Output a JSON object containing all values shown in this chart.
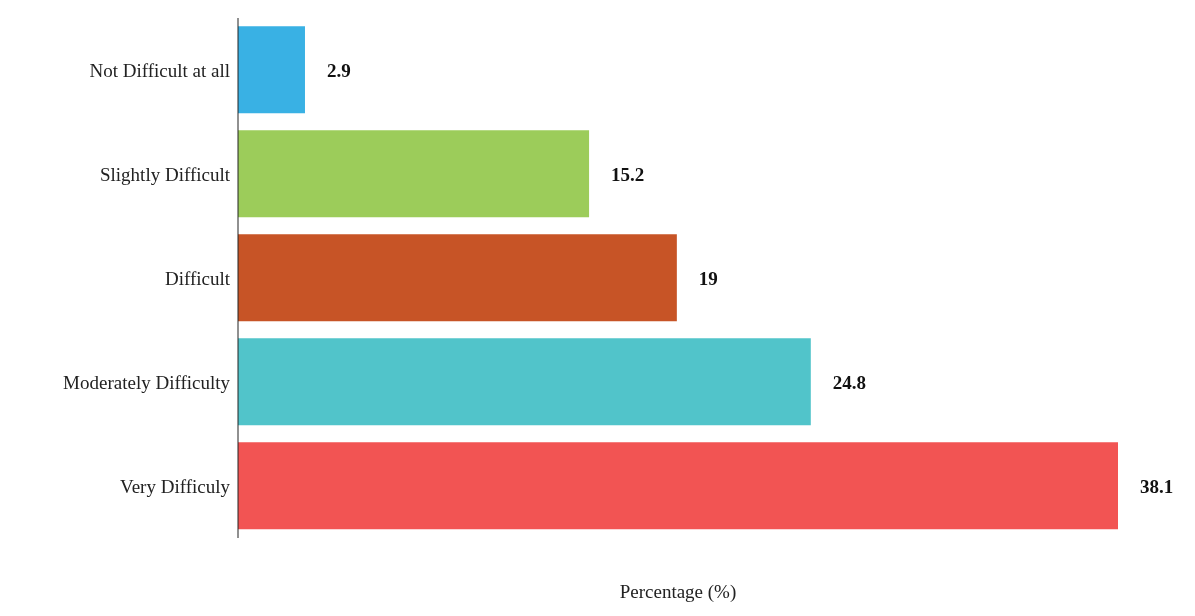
{
  "chart_data": {
    "type": "bar",
    "orientation": "horizontal",
    "xlabel": "Percentage (%)",
    "categories": [
      "Not Difficult at all",
      "Slightly Difficult",
      "Difficult",
      "Moderately Difficulty",
      "Very Difficuly"
    ],
    "values": [
      2.9,
      15.2,
      19,
      24.8,
      38.1
    ],
    "colors": [
      "#39b1e4",
      "#9ccc5a",
      "#c75426",
      "#51c4ca",
      "#f25453"
    ],
    "data_labels": true
  }
}
